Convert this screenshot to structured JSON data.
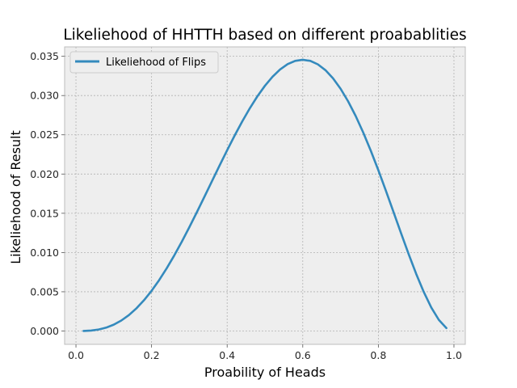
{
  "chart_data": {
    "type": "line",
    "title": "Likeliehood of HHTTH based on different proabablities",
    "xlabel": "Proability of Heads",
    "ylabel": "Likeliehood of Result",
    "xlim": [
      -0.03,
      1.03
    ],
    "ylim": [
      -0.0017,
      0.0362
    ],
    "xticks": [
      0.0,
      0.2,
      0.4,
      0.6,
      0.8,
      1.0
    ],
    "xtick_labels": [
      "0.0",
      "0.2",
      "0.4",
      "0.6",
      "0.8",
      "1.0"
    ],
    "yticks": [
      0.0,
      0.005,
      0.01,
      0.015,
      0.02,
      0.025,
      0.03,
      0.035
    ],
    "ytick_labels": [
      "0.000",
      "0.005",
      "0.010",
      "0.015",
      "0.020",
      "0.025",
      "0.030",
      "0.035"
    ],
    "grid": true,
    "legend_position": "top-left",
    "series": [
      {
        "name": "Likeliehood of Flips",
        "color": "#348ABD",
        "x": [
          0.02,
          0.04,
          0.06,
          0.08,
          0.1,
          0.12,
          0.14,
          0.16,
          0.18,
          0.2,
          0.22,
          0.24,
          0.26,
          0.28,
          0.3,
          0.32,
          0.34,
          0.36,
          0.38,
          0.4,
          0.42,
          0.44,
          0.46,
          0.48,
          0.5,
          0.52,
          0.54,
          0.56,
          0.58,
          0.6,
          0.62,
          0.64,
          0.66,
          0.68,
          0.7,
          0.72,
          0.74,
          0.76,
          0.78,
          0.8,
          0.82,
          0.84,
          0.86,
          0.88,
          0.9,
          0.92,
          0.94,
          0.96,
          0.98
        ],
        "y": [
          7.5e-06,
          5.66e-05,
          0.0001791,
          0.0003962,
          0.000729,
          0.0011966,
          0.0018178,
          0.0026034,
          0.0035674,
          0.004096,
          0.0059977,
          0.0073556,
          0.0087904,
          0.010287,
          0.01323,
          0.0149217,
          0.0166264,
          0.0183389,
          0.0200302,
          0.02304,
          0.0232741,
          0.0247627,
          0.0261336,
          0.0273708,
          0.03125,
          0.0293023,
          0.0299969,
          0.030503,
          0.0307964,
          0.03456,
          0.0307366,
          0.030303,
          0.029622,
          0.0286827,
          0.03087,
          0.0260716,
          0.0244145,
          0.0225485,
          0.0204845,
          0.02048,
          0.0157884,
          0.0131915,
          0.0105019,
          0.0077701,
          0.00729,
          0.0025412,
          0.0010903,
          0.0011796,
          0.000376
        ]
      }
    ]
  }
}
